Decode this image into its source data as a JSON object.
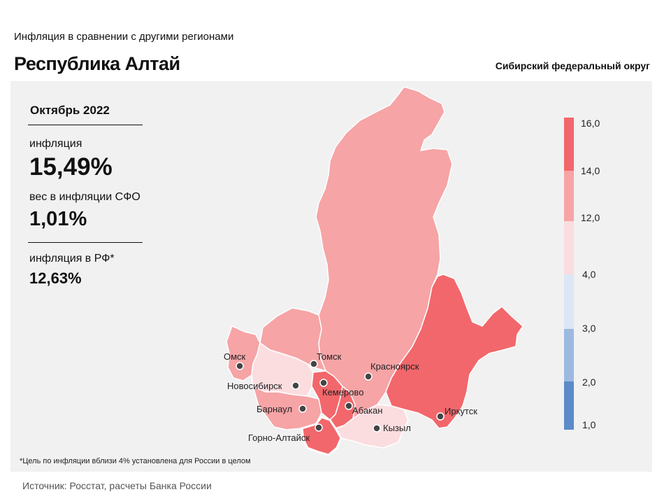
{
  "header": {
    "subtitle": "Инфляция  в сравнении  с другими  регионами",
    "title": "Республика Алтай",
    "district": "Сибирский федеральный округ"
  },
  "stats": {
    "period": "Октябрь 2022",
    "inflation_label": "инфляция",
    "inflation_value": "15,49%",
    "weight_label": "вес в инфляции  СФО",
    "weight_value": "1,01%",
    "rf_label": "инфляция  в РФ*",
    "rf_value": "12,63%"
  },
  "map": {
    "regions": [
      {
        "name": "Красноярский край",
        "band": "12,0–14,0",
        "color": "#f6a4a6"
      },
      {
        "name": "Иркутская область",
        "band": "14,0–16,0",
        "color": "#f2676b"
      },
      {
        "name": "Омская область",
        "band": "12,0–14,0",
        "color": "#f6a4a6"
      },
      {
        "name": "Томская область",
        "band": "12,0–14,0",
        "color": "#f6a4a6"
      },
      {
        "name": "Новосибирская область",
        "band": "4,0–12,0",
        "color": "#fbdde0"
      },
      {
        "name": "Кемеровская область",
        "band": "14,0–16,0",
        "color": "#f2676b"
      },
      {
        "name": "Алтайский край",
        "band": "12,0–14,0",
        "color": "#f6a4a6"
      },
      {
        "name": "Республика Хакасия",
        "band": "14,0–16,0",
        "color": "#f2676b"
      },
      {
        "name": "Республика Тыва",
        "band": "4,0–12,0",
        "color": "#fbdde0"
      },
      {
        "name": "Республика Алтай",
        "band": "14,0–16,0",
        "color": "#f2676b"
      }
    ],
    "cities": {
      "omsk": "Омск",
      "tomsk": "Томск",
      "novosibirsk": "Новосибирск",
      "kemerovo": "Кемерово",
      "krasnoyarsk": "Красноярск",
      "barnaul": "Барнаул",
      "abakan": "Абакан",
      "gorno_altaysk": "Горно-Алтайск",
      "kyzyl": "Кызыл",
      "irkutsk": "Иркутск"
    }
  },
  "legend": {
    "labels": [
      "16,0",
      "14,0",
      "12,0",
      "4,0",
      "3,0",
      "2,0",
      "1,0"
    ],
    "colors": [
      "#f2676b",
      "#f6a4a6",
      "#fbdde0",
      "#dde6f5",
      "#9cb9e0",
      "#5b8bc9"
    ]
  },
  "footer": {
    "note": "*Цель по инфляции вблизи 4% установлена для России в целом",
    "source": "Источник: Росстат, расчеты Банка России"
  }
}
